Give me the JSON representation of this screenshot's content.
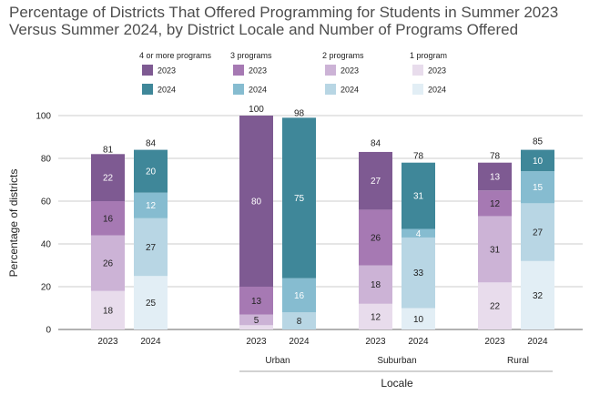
{
  "title_line1": "Percentage of Districts That Offered Programming for Students in Summer 2023",
  "title_line2": "Versus Summer 2024, by District Locale and Number of Programs Offered",
  "chart_data": {
    "type": "bar",
    "stacked": true,
    "title": "Percentage of Districts That Offered Programming for Students in Summer 2023 Versus Summer 2024, by District Locale and Number of Programs Offered",
    "xlabel": "Locale",
    "ylabel": "Percentage of districts",
    "ylim": [
      0,
      100
    ],
    "yticks": [
      0,
      20,
      40,
      60,
      80,
      100
    ],
    "grid": true,
    "legend_position": "top",
    "groups": [
      "",
      "Urban",
      "Suburban",
      "Rural"
    ],
    "bars": [
      {
        "group": "",
        "year": "2023",
        "total": 81,
        "segments": [
          18,
          26,
          16,
          22
        ]
      },
      {
        "group": "",
        "year": "2024",
        "total": 84,
        "segments": [
          25,
          27,
          12,
          20
        ]
      },
      {
        "group": "Urban",
        "year": "2023",
        "total": 100,
        "segments": [
          2,
          5,
          13,
          80
        ]
      },
      {
        "group": "Urban",
        "year": "2024",
        "total": 98,
        "segments": [
          0,
          8,
          16,
          75
        ]
      },
      {
        "group": "Suburban",
        "year": "2023",
        "total": 84,
        "segments": [
          12,
          18,
          26,
          27
        ]
      },
      {
        "group": "Suburban",
        "year": "2024",
        "total": 78,
        "segments": [
          10,
          33,
          4,
          31
        ]
      },
      {
        "group": "Rural",
        "year": "2023",
        "total": 78,
        "segments": [
          22,
          31,
          12,
          13
        ]
      },
      {
        "group": "Rural",
        "year": "2024",
        "total": 85,
        "segments": [
          32,
          27,
          15,
          10
        ]
      }
    ],
    "segment_labels": [
      [
        "18",
        "26",
        "16",
        "22"
      ],
      [
        "25",
        "27",
        "12",
        "20"
      ],
      [
        "",
        "5",
        "13",
        "80"
      ],
      [
        "",
        "8",
        "16",
        "75"
      ],
      [
        "12",
        "18",
        "26",
        "27"
      ],
      [
        "10",
        "33",
        "4",
        "31"
      ],
      [
        "22",
        "31",
        "12",
        "13"
      ],
      [
        "32",
        "27",
        "15",
        "10"
      ]
    ],
    "series": [
      {
        "name": "1 program",
        "colors": {
          "2023": "#e8dcec",
          "2024": "#e2eef5"
        }
      },
      {
        "name": "2 programs",
        "colors": {
          "2023": "#ccb3d6",
          "2024": "#b8d6e4"
        }
      },
      {
        "name": "3 programs",
        "colors": {
          "2023": "#a679b3",
          "2024": "#86bcd0"
        }
      },
      {
        "name": "4 or more programs",
        "colors": {
          "2023": "#7e5a92",
          "2024": "#3f8799"
        }
      }
    ],
    "legend_order": [
      "4 or more programs",
      "3 programs",
      "2 programs",
      "1 program"
    ],
    "legend_years": [
      "2023",
      "2024"
    ]
  }
}
